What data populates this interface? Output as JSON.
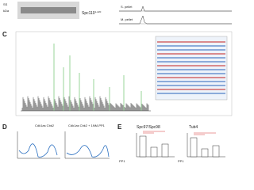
{
  "gel": {
    "labels": [
      "SS",
      "kDa"
    ],
    "band_label": "Spc110",
    "band_superscript": "1-220"
  },
  "ms_traces": {
    "labels": [
      "S. pellet",
      "M. pellet"
    ]
  },
  "panels": [
    "C",
    "D",
    "E"
  ],
  "panel_d": {
    "titles": [
      "Cdk1as Cbk2",
      "Cdk1as Cbk2 + 1NM-PP1"
    ]
  },
  "panel_e": {
    "titles": [
      "Spc97/Spc98",
      "Tub4"
    ],
    "row_label": "PP1"
  }
}
